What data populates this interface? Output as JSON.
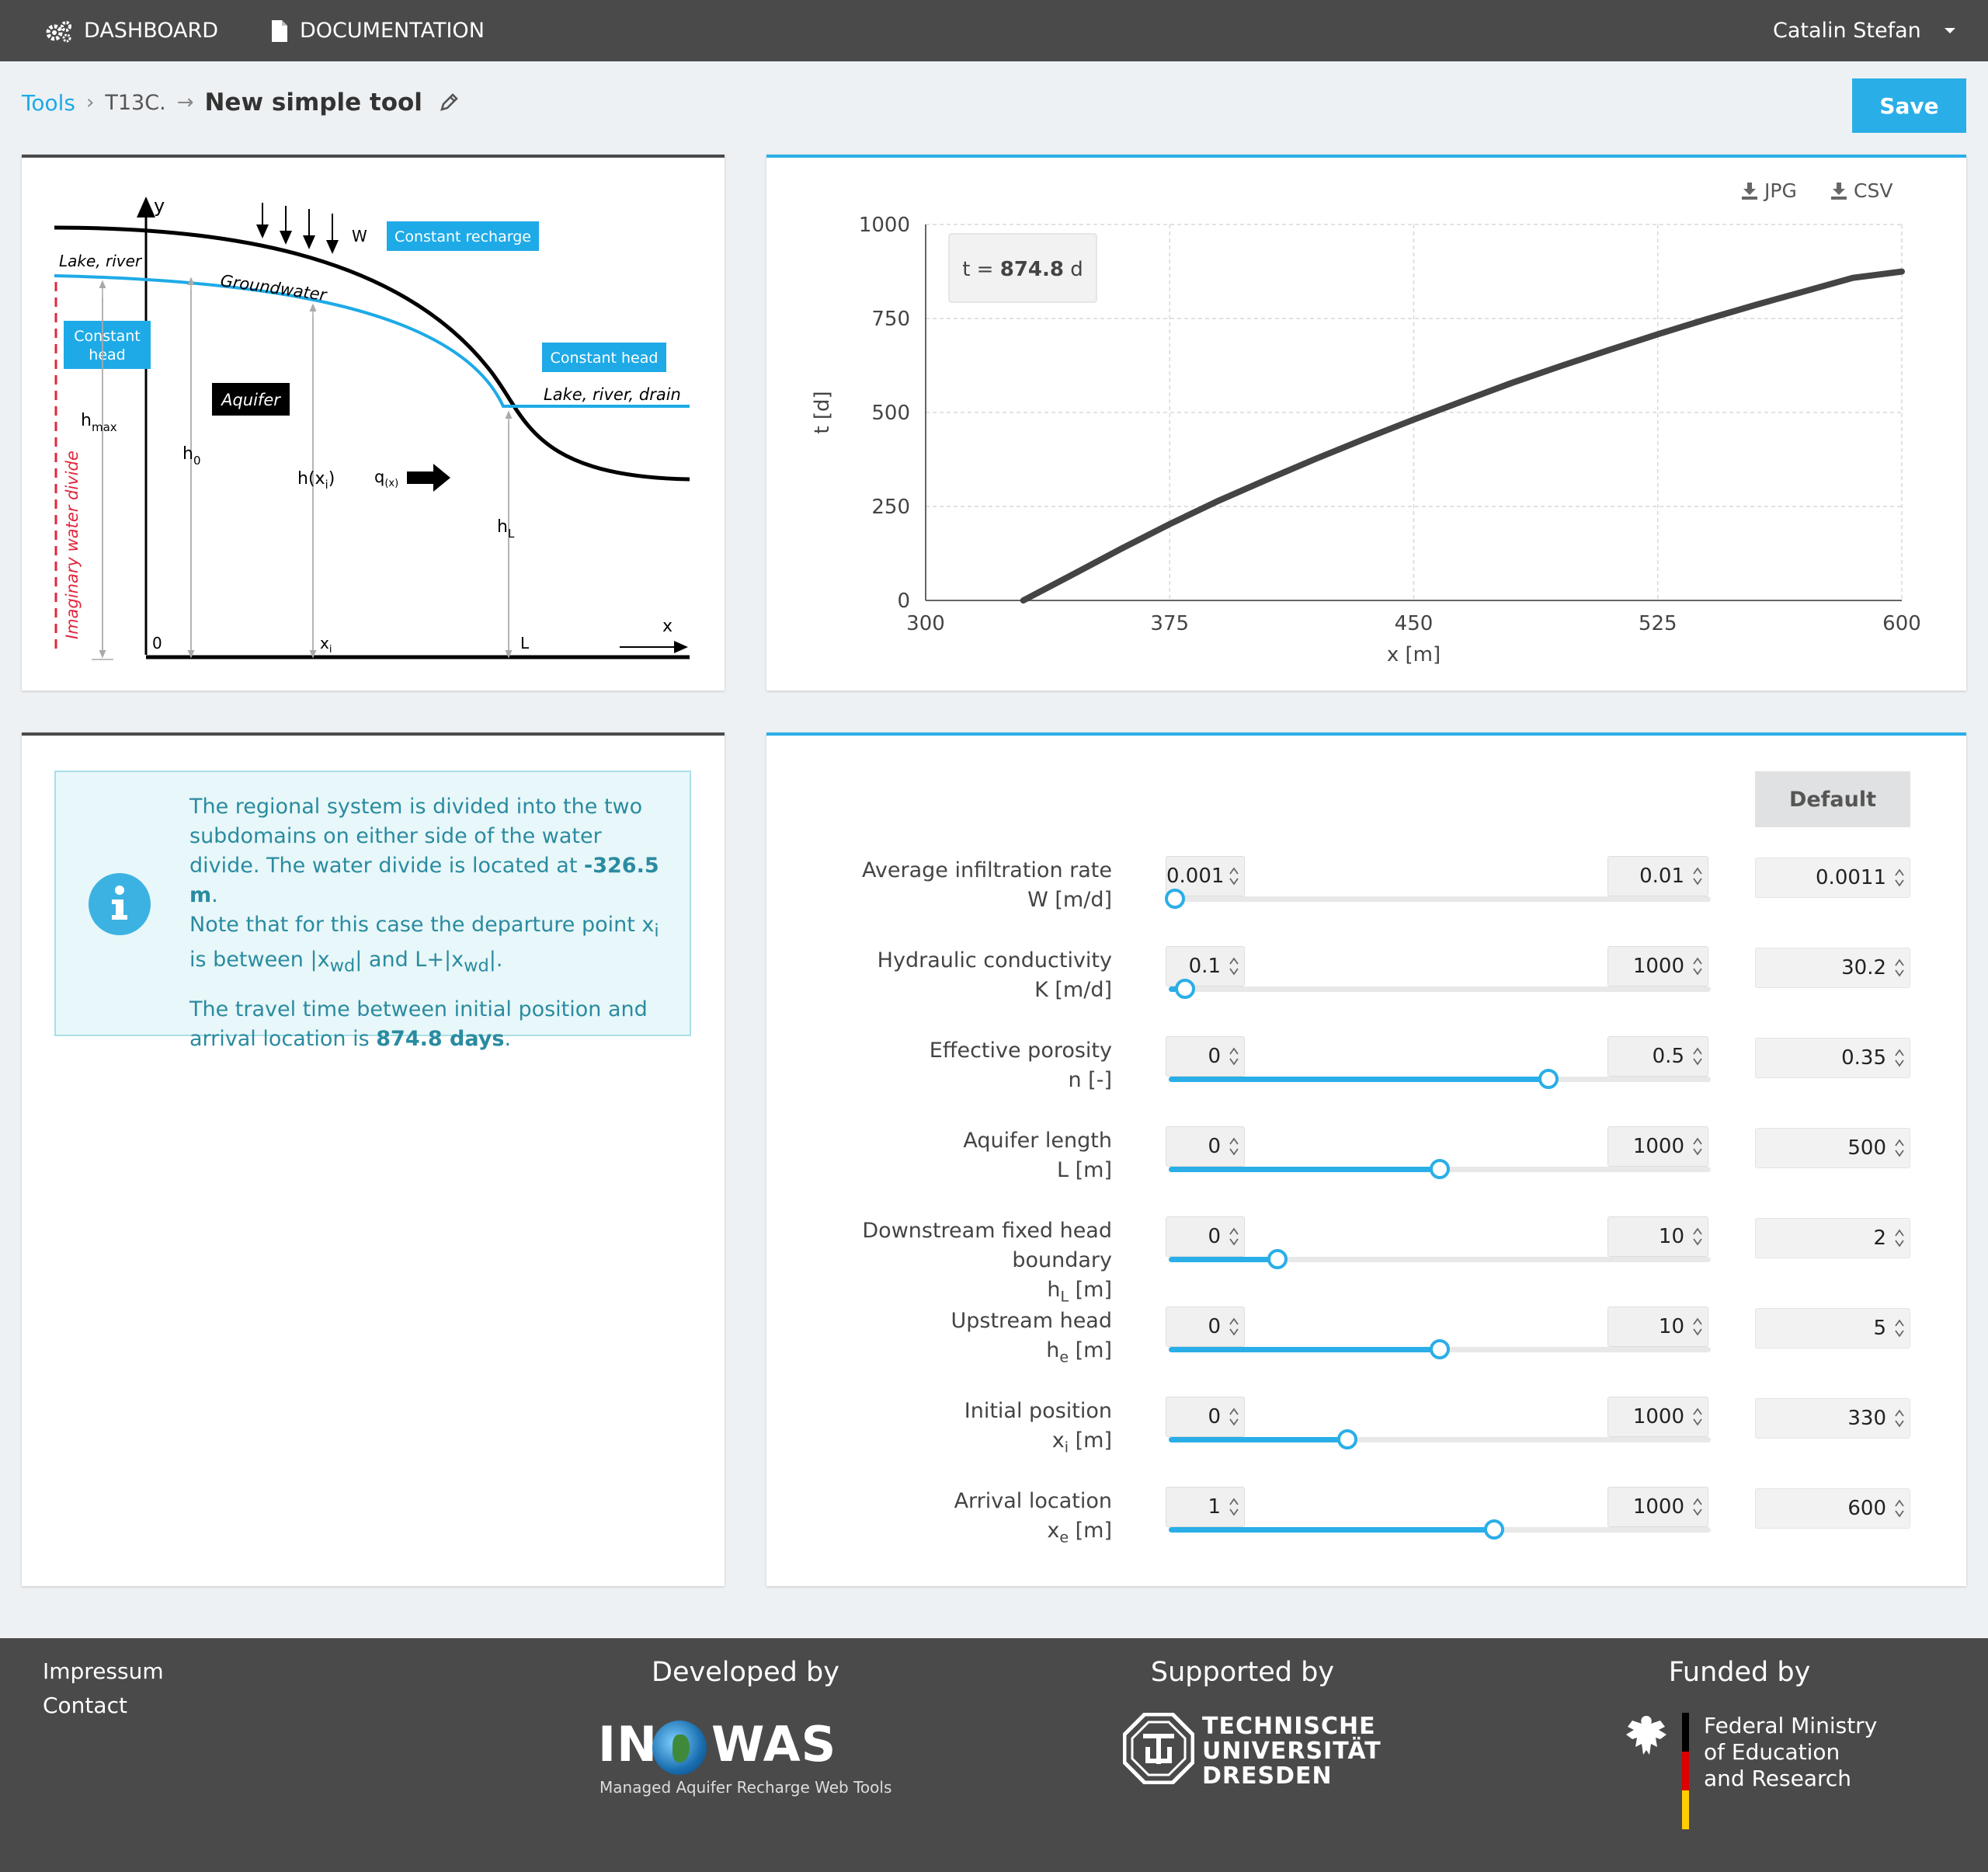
{
  "topbar": {
    "dashboard": "DASHBOARD",
    "documentation": "DOCUMENTATION",
    "user": "Catalin Stefan"
  },
  "breadcrumb": {
    "tools": "Tools",
    "tool_code": "T13C.",
    "title": "New simple tool"
  },
  "save_label": "Save",
  "diagram": {
    "y_axis": "y",
    "x_axis": "x",
    "w": "W",
    "recharge": "Constant recharge",
    "lake_left": "Lake, river",
    "groundwater": "Groundwater",
    "const_head_l1": "Constant",
    "const_head_l2": "head",
    "const_head_r": "Constant head",
    "lake_right": "Lake, river, drain",
    "aquifer": "Aquifer",
    "hmax": "h",
    "hmax_sub": "max",
    "h0": "h",
    "h0_sub": "0",
    "hx": "h(x",
    "hx_sub": "i",
    "hx_end": ")",
    "q": "q",
    "q_sub": "(x)",
    "hl": "h",
    "hl_sub": "L",
    "divide": "Imaginary water divide",
    "zero": "0",
    "xi": "x",
    "xi_sub": "i",
    "L": "L"
  },
  "downloads": {
    "jpg": "JPG",
    "csv": "CSV"
  },
  "chart_data": {
    "type": "line",
    "xlabel": "x [m]",
    "ylabel": "t [d]",
    "xlim": [
      300,
      600
    ],
    "ylim": [
      0,
      1000
    ],
    "xticks": [
      "300",
      "375",
      "450",
      "525",
      "600"
    ],
    "yticks": [
      "0",
      "250",
      "500",
      "750",
      "1000"
    ],
    "x": [
      330,
      345,
      360,
      375,
      390,
      405,
      420,
      435,
      450,
      465,
      480,
      495,
      510,
      525,
      540,
      555,
      570,
      585,
      600
    ],
    "y": [
      0,
      68,
      137,
      203,
      265,
      322,
      377,
      430,
      481,
      530,
      578,
      623,
      666,
      708,
      748,
      786,
      822,
      858,
      874.8
    ],
    "tooltip_prefix": "t = ",
    "tooltip_value": "874.8",
    "tooltip_unit": " d",
    "grid": true,
    "line_color": "#444444"
  },
  "info": {
    "p1a": "The regional system is divided into the two subdomains on either side of the water divide. The water divide is located at ",
    "p1b": "-326.5 m",
    "p1c": ".",
    "p2a": "Note that for this case the departure point x",
    "p2b": "i",
    "p2c": " is between |x",
    "p2d": "wd",
    "p2e": "| and L+|x",
    "p2f": "wd",
    "p2g": "|.",
    "p3a": "The travel time between initial position and arrival location is ",
    "p3b": "874.8 days",
    "p3c": "."
  },
  "default_label": "Default",
  "params": [
    {
      "l1": "Average infiltration rate",
      "l2a": "W [m/d]",
      "l2s": "",
      "l2b": "",
      "min": "0.001",
      "max": "0.01",
      "value": "0.0011",
      "frac": 0.011
    },
    {
      "l1": "Hydraulic conductivity",
      "l2a": "K [m/d]",
      "l2s": "",
      "l2b": "",
      "min": "0.1",
      "max": "1000",
      "value": "30.2",
      "frac": 0.03
    },
    {
      "l1": "Effective porosity",
      "l2a": "n [-]",
      "l2s": "",
      "l2b": "",
      "min": "0",
      "max": "0.5",
      "value": "0.35",
      "frac": 0.7
    },
    {
      "l1": "Aquifer length",
      "l2a": "L [m]",
      "l2s": "",
      "l2b": "",
      "min": "0",
      "max": "1000",
      "value": "500",
      "frac": 0.5
    },
    {
      "l1": "Downstream fixed head",
      "l1b": "boundary",
      "l2a": "h",
      "l2s": "L",
      "l2b": " [m]",
      "min": "0",
      "max": "10",
      "value": "2",
      "frac": 0.2
    },
    {
      "l1": "Upstream head",
      "l2a": "h",
      "l2s": "e",
      "l2b": " [m]",
      "min": "0",
      "max": "10",
      "value": "5",
      "frac": 0.5
    },
    {
      "l1": "Initial position",
      "l2a": "x",
      "l2s": "i",
      "l2b": " [m]",
      "min": "0",
      "max": "1000",
      "value": "330",
      "frac": 0.33
    },
    {
      "l1": "Arrival location",
      "l2a": "x",
      "l2s": "e",
      "l2b": " [m]",
      "min": "1",
      "max": "1000",
      "value": "600",
      "frac": 0.6
    }
  ],
  "footer": {
    "impressum": "Impressum",
    "contact": "Contact",
    "developed": "Developed by",
    "supported": "Supported by",
    "funded": "Funded by",
    "inowas_a": "IN",
    "inowas_b": "WAS",
    "inowas_sub": "Managed Aquifer Recharge Web Tools",
    "tud1": "TECHNISCHE",
    "tud2": "UNIVERSITÄT",
    "tud3": "DRESDEN",
    "bm1": "Federal Ministry",
    "bm2": "of Education",
    "bm3": "and Research"
  }
}
